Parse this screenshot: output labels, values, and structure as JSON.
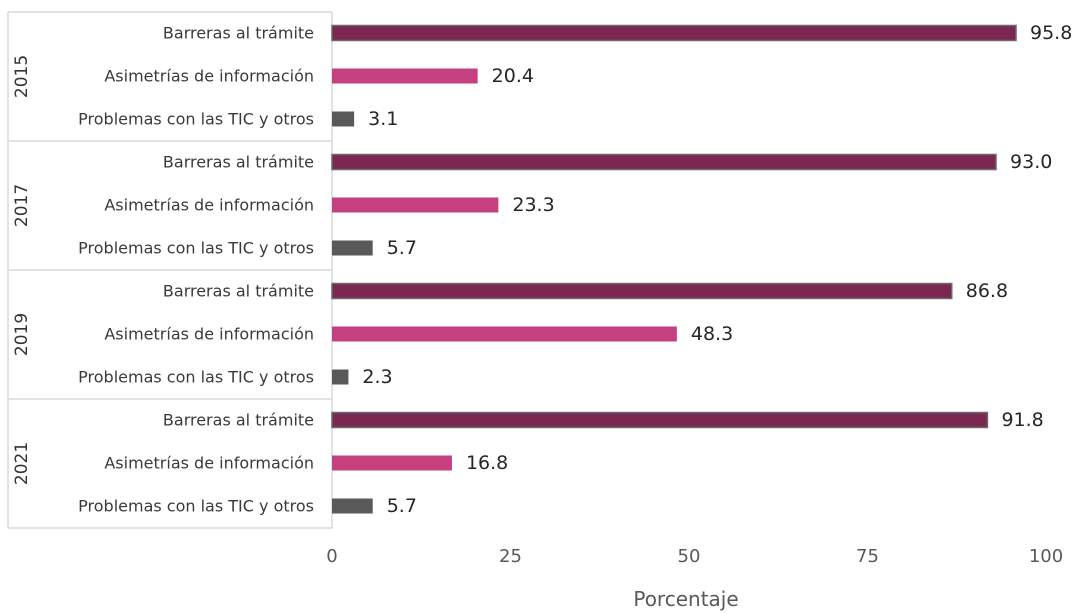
{
  "chart_data": {
    "type": "bar",
    "orientation": "horizontal",
    "title": "",
    "xlabel": "Porcentaje",
    "ylabel": "",
    "xlim": [
      0,
      100
    ],
    "xticks": [
      "0",
      "25",
      "50",
      "75",
      "100"
    ],
    "grid": false,
    "legend": "none",
    "groups": [
      {
        "year": "2015",
        "items": [
          {
            "category": "Barreras al trámite",
            "value": 95.8,
            "label": "95.8"
          },
          {
            "category": "Asimetrías de información",
            "value": 20.4,
            "label": "20.4"
          },
          {
            "category": "Problemas con las TIC y otros",
            "value": 3.1,
            "label": "3.1"
          }
        ]
      },
      {
        "year": "2017",
        "items": [
          {
            "category": "Barreras al trámite",
            "value": 93.0,
            "label": "93.0"
          },
          {
            "category": "Asimetrías de información",
            "value": 23.3,
            "label": "23.3"
          },
          {
            "category": "Problemas con las TIC y otros",
            "value": 5.7,
            "label": "5.7"
          }
        ]
      },
      {
        "year": "2019",
        "items": [
          {
            "category": "Barreras al trámite",
            "value": 86.8,
            "label": "86.8"
          },
          {
            "category": "Asimetrías de información",
            "value": 48.3,
            "label": "48.3"
          },
          {
            "category": "Problemas con las TIC y otros",
            "value": 2.3,
            "label": "2.3"
          }
        ]
      },
      {
        "year": "2021",
        "items": [
          {
            "category": "Barreras al trámite",
            "value": 91.8,
            "label": "91.8"
          },
          {
            "category": "Asimetrías de información",
            "value": 16.8,
            "label": "16.8"
          },
          {
            "category": "Problemas con las TIC y otros",
            "value": 5.7,
            "label": "5.7"
          }
        ]
      }
    ],
    "colors": {
      "Barreras al trámite": "#7b2752",
      "Asimetrías de información": "#c5407e",
      "Problemas con las TIC y otros": "#595959"
    }
  }
}
